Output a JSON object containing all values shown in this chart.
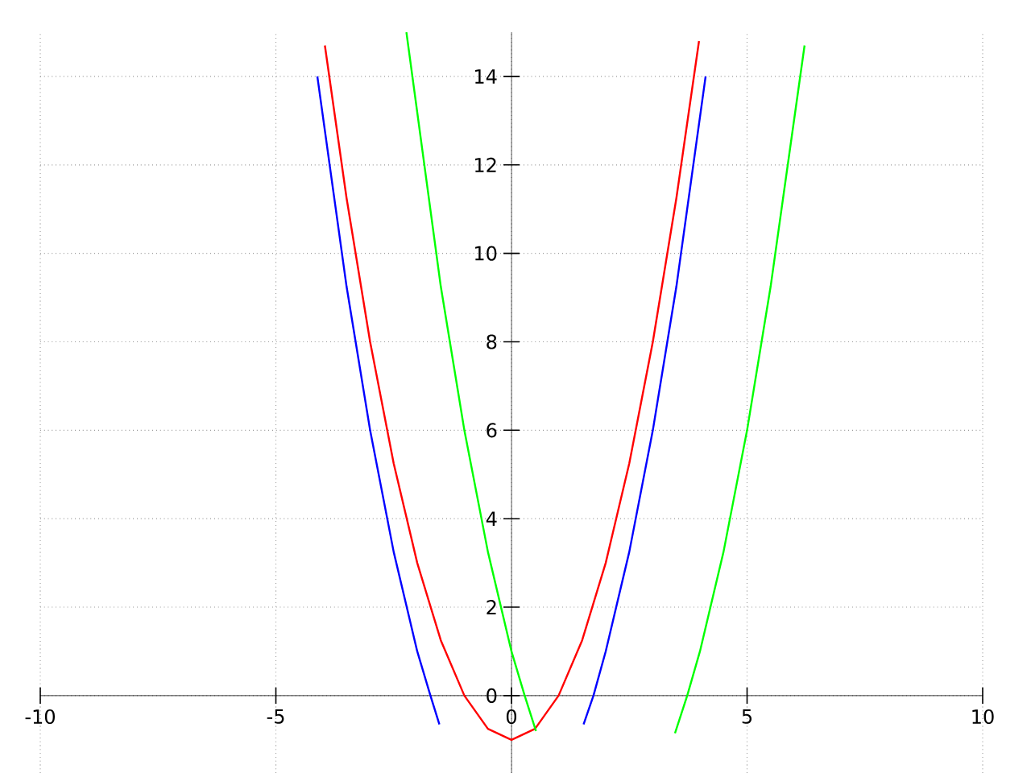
{
  "chart_data": {
    "type": "line",
    "xlim": [
      -10,
      10
    ],
    "ylim": [
      -1.75,
      15
    ],
    "xticks": [
      -10,
      -5,
      0,
      5,
      10
    ],
    "yticks": [
      0,
      2,
      4,
      6,
      8,
      10,
      12,
      14
    ],
    "grid": true,
    "line_style": "solid",
    "marker": "none",
    "series": [
      {
        "color": "#ff0000",
        "x": [
          -3.96,
          -3.5,
          -3,
          -2.5,
          -2,
          -1.5,
          -1,
          -0.5,
          0,
          0.5,
          1,
          1.5,
          2,
          2.5,
          3,
          3.5,
          3.98
        ],
        "values": [
          14.7,
          11.25,
          8,
          5.25,
          3,
          1.25,
          0,
          -0.75,
          -1,
          -0.75,
          0,
          1.25,
          3,
          5.25,
          8,
          11.25,
          14.8
        ]
      },
      {
        "color": "#0000ff",
        "x": [
          -4.12,
          -3.5,
          -3,
          -2.5,
          -2,
          -1.72,
          -1.53,
          null,
          1.53,
          1.74,
          2,
          2.5,
          3,
          3.5,
          4.12
        ],
        "values": [
          14,
          9.25,
          6,
          3.25,
          1,
          0,
          -0.65,
          null,
          -0.65,
          0,
          1,
          3.25,
          6,
          9.25,
          14
        ]
      },
      {
        "color": "#00ff00",
        "x": [
          -2.23,
          -1.5,
          -1,
          -0.5,
          0,
          0.28,
          0.52,
          null,
          3.47,
          3.73,
          4,
          4.5,
          5,
          5.5,
          6.22
        ],
        "values": [
          15,
          9.25,
          6,
          3.25,
          1,
          0,
          -0.8,
          null,
          -0.85,
          0,
          1,
          3.25,
          6,
          9.25,
          14.7
        ]
      }
    ]
  }
}
